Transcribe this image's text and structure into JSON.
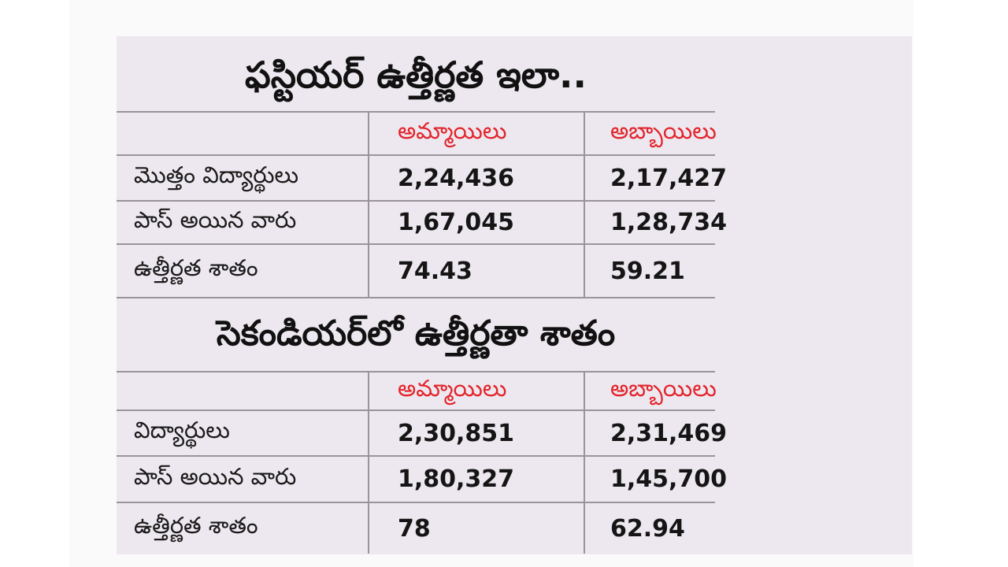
{
  "first_year": {
    "title": "ఫస్టియర్‌ ఉత్తీర్ణత ఇలా..",
    "columns": [
      "",
      "అమ్మాయిలు",
      "అబ్బాయిలు"
    ],
    "rows": [
      {
        "label": "మొత్తం విద్యార్థులు",
        "girls": "2,24,436",
        "boys": "2,17,427"
      },
      {
        "label": "పాస్‌ అయిన వారు",
        "girls": "1,67,045",
        "boys": "1,28,734"
      },
      {
        "label": "ఉత్తీర్ణత శాతం",
        "girls": "74.43",
        "boys": "59.21"
      }
    ]
  },
  "second_year": {
    "title": "సెకండియర్‌లో ఉత్తీర్ణతా శాతం",
    "columns": [
      "",
      "అమ్మాయిలు",
      "అబ్బాయిలు"
    ],
    "rows": [
      {
        "label": "విద్యార్థులు",
        "girls": "2,30,851",
        "boys": "2,31,469"
      },
      {
        "label": "పాస్‌ అయిన వారు",
        "girls": "1,80,327",
        "boys": "1,45,700"
      },
      {
        "label": "ఉత్తీర్ణత శాతం",
        "girls": "78",
        "boys": "62.94"
      }
    ]
  },
  "colors": {
    "header_text": "#e3232b",
    "panel_background": "#ede8ef",
    "rule_lines": "#9a949a"
  }
}
